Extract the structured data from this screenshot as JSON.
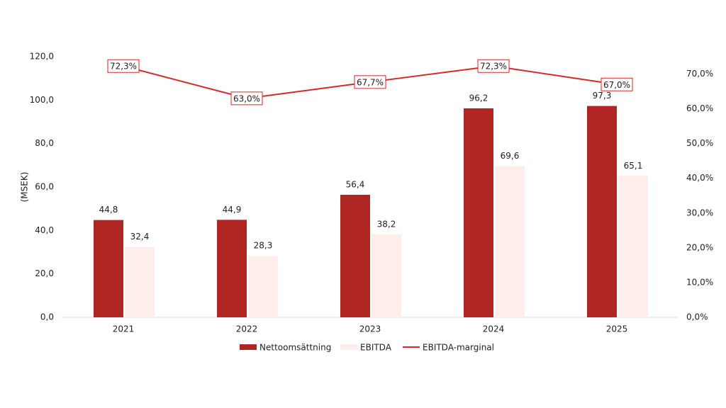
{
  "chart_data": {
    "type": "bar",
    "y_label": "(MSEK)",
    "categories": [
      "2021",
      "2022",
      "2023",
      "2024",
      "2025"
    ],
    "series": [
      {
        "name": "Nettoomsättning",
        "type": "bar",
        "color": "#b02623",
        "values": [
          44.8,
          44.9,
          56.4,
          96.2,
          97.3
        ],
        "value_labels": [
          "44,8",
          "44,9",
          "56,4",
          "96,2",
          "97,3"
        ]
      },
      {
        "name": "EBITDA",
        "type": "bar",
        "color": "#fdeeec",
        "values": [
          32.4,
          28.3,
          38.2,
          69.6,
          65.1
        ],
        "value_labels": [
          "32,4",
          "28,3",
          "38,2",
          "69,6",
          "65,1"
        ]
      },
      {
        "name": "EBITDA-marginal",
        "type": "line",
        "axis": "y2",
        "color": "#d32a27",
        "values": [
          72.3,
          63.0,
          67.7,
          72.3,
          67.0
        ],
        "value_labels": [
          "72,3%",
          "63,0%",
          "67,7%",
          "72,3%",
          "67,0%"
        ]
      }
    ],
    "ylim": [
      0,
      120
    ],
    "yticks": [
      {
        "value": 0,
        "label": "0,0"
      },
      {
        "value": 20,
        "label": "20,0"
      },
      {
        "value": 40,
        "label": "40,0"
      },
      {
        "value": 60,
        "label": "60,0"
      },
      {
        "value": 80,
        "label": "80,0"
      },
      {
        "value": 100,
        "label": "100,0"
      },
      {
        "value": 120,
        "label": "120,0"
      }
    ],
    "y2lim": [
      0,
      75
    ],
    "y2ticks": [
      {
        "value": 0,
        "label": "0,0%"
      },
      {
        "value": 10,
        "label": "10,0%"
      },
      {
        "value": 20,
        "label": "20,0%"
      },
      {
        "value": 30,
        "label": "30,0%"
      },
      {
        "value": 40,
        "label": "40,0%"
      },
      {
        "value": 50,
        "label": "50,0%"
      },
      {
        "value": 60,
        "label": "60,0%"
      },
      {
        "value": 70,
        "label": "70,0%"
      }
    ],
    "grid": false,
    "legend": "bottom"
  }
}
